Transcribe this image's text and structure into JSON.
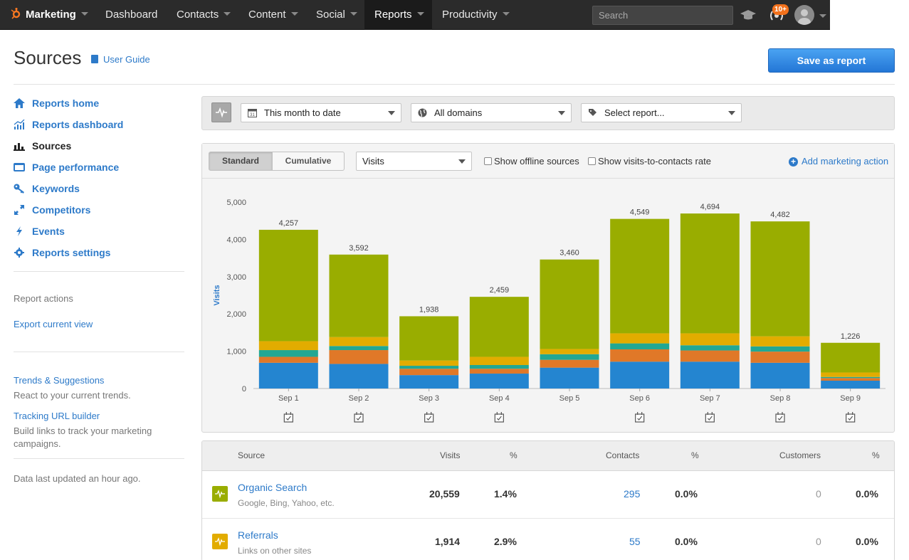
{
  "nav": {
    "brand": "Marketing",
    "items": [
      "Dashboard",
      "Contacts",
      "Content",
      "Social",
      "Reports",
      "Productivity"
    ],
    "search_placeholder": "Search",
    "notification_badge": "10+"
  },
  "header": {
    "title": "Sources",
    "user_guide": "User Guide",
    "save_button": "Save as report"
  },
  "sidebar": {
    "items": [
      {
        "label": "Reports home",
        "icon": "home-icon"
      },
      {
        "label": "Reports dashboard",
        "icon": "line-chart-icon"
      },
      {
        "label": "Sources",
        "icon": "bar-chart-icon"
      },
      {
        "label": "Page performance",
        "icon": "page-icon"
      },
      {
        "label": "Keywords",
        "icon": "key-icon"
      },
      {
        "label": "Competitors",
        "icon": "competitors-icon"
      },
      {
        "label": "Events",
        "icon": "bolt-icon"
      },
      {
        "label": "Reports settings",
        "icon": "gear-icon"
      }
    ],
    "actions_heading": "Report actions",
    "export_link": "Export current view",
    "trends_link": "Trends & Suggestions",
    "trends_text": "React to your current trends.",
    "tracking_link": "Tracking URL builder",
    "tracking_text": "Build links to track your marketing campaigns.",
    "updated_text": "Data last updated an hour ago."
  },
  "filters": {
    "date_range": "This month to date",
    "domains": "All domains",
    "report": "Select report..."
  },
  "chart_toolbar": {
    "standard": "Standard",
    "cumulative": "Cumulative",
    "metric": "Visits",
    "offline_sources": "Show offline sources",
    "visits_to_contacts": "Show visits-to-contacts rate",
    "add_action": "Add marketing action"
  },
  "colors": {
    "organic": "#99ad00",
    "referrals": "#e2ac00",
    "social": "#22a793",
    "email": "#e07828",
    "direct": "#2485d0",
    "link": "#2d7ac9"
  },
  "chart_data": {
    "type": "bar",
    "stacked": true,
    "ylabel": "Visits",
    "ylim": [
      0,
      5000
    ],
    "yticks": [
      "0",
      "1,000",
      "2,000",
      "3,000",
      "4,000",
      "5,000"
    ],
    "categories": [
      "Sep 1",
      "Sep 2",
      "Sep 3",
      "Sep 4",
      "Sep 5",
      "Sep 6",
      "Sep 7",
      "Sep 8",
      "Sep 9"
    ],
    "totals": [
      4257,
      3592,
      1938,
      2459,
      3460,
      4549,
      4694,
      4482,
      1226
    ],
    "total_labels": [
      "4,257",
      "3,592",
      "1,938",
      "2,459",
      "3,460",
      "4,549",
      "4,694",
      "4,482",
      "1,226"
    ],
    "series": [
      {
        "color": "#2485d0",
        "values": [
          690,
          660,
          360,
          400,
          560,
          720,
          720,
          690,
          210
        ]
      },
      {
        "color": "#e07828",
        "values": [
          160,
          370,
          170,
          130,
          210,
          330,
          300,
          300,
          70
        ]
      },
      {
        "color": "#22a793",
        "values": [
          180,
          110,
          80,
          100,
          150,
          160,
          140,
          140,
          30
        ]
      },
      {
        "color": "#e2ac00",
        "values": [
          240,
          240,
          140,
          220,
          140,
          270,
          320,
          270,
          120
        ]
      },
      {
        "color": "#99ad00",
        "values": [
          2987,
          2212,
          1188,
          1609,
          2400,
          3069,
          3214,
          3082,
          796
        ]
      }
    ]
  },
  "table": {
    "headers": [
      "Source",
      "Visits",
      "%",
      "Contacts",
      "%",
      "Customers",
      "%"
    ],
    "rows": [
      {
        "name": "Organic Search",
        "sub": "Google, Bing, Yahoo, etc.",
        "visits": "20,559",
        "visits_pct": "1.4%",
        "contacts": "295",
        "contacts_pct": "0.0%",
        "customers": "0",
        "customers_pct": "0.0%",
        "color": "#99ad00"
      },
      {
        "name": "Referrals",
        "sub": "Links on other sites",
        "visits": "1,914",
        "visits_pct": "2.9%",
        "contacts": "55",
        "contacts_pct": "0.0%",
        "customers": "0",
        "customers_pct": "0.0%",
        "color": "#e2ac00"
      }
    ]
  }
}
